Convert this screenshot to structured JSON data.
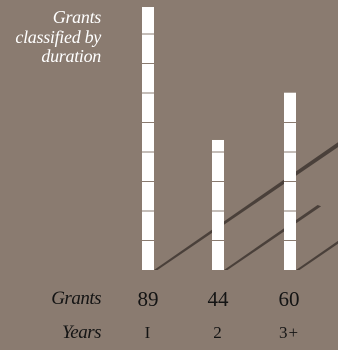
{
  "chart_data": {
    "type": "bar",
    "title": "Grants\nclassified by\nduration",
    "categories": [
      "1",
      "2",
      "3+"
    ],
    "category_labels": [
      "I",
      "2",
      "3+"
    ],
    "values": [
      89,
      44,
      60
    ],
    "row_labels": {
      "values": "Grants",
      "categories": "Years"
    },
    "colors": {
      "background": "#8a7b70",
      "bar": "#ffffff",
      "shadow": "#4a403a",
      "text": "#141414"
    }
  }
}
